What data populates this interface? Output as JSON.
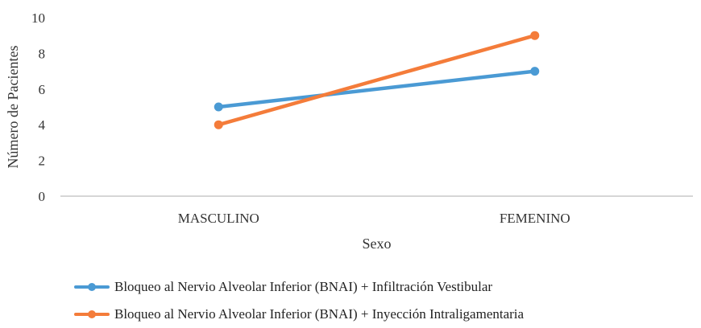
{
  "chart_data": {
    "type": "line",
    "categories": [
      "MASCULINO",
      "FEMENINO"
    ],
    "series": [
      {
        "name": "Bloqueo al Nervio Alveolar Inferior (BNAI) + Infiltración Vestibular",
        "values": [
          5,
          7
        ],
        "color": "#4a9ad4"
      },
      {
        "name": "Bloqueo al Nervio Alveolar Inferior (BNAI) + Inyección Intraligamentaria",
        "values": [
          4,
          9
        ],
        "color": "#f47c3a"
      }
    ],
    "xlabel": "Sexo",
    "ylabel": "Número de Pacientes",
    "ylim": [
      0,
      10
    ],
    "yticks": [
      "0",
      "2",
      "4",
      "6",
      "8",
      "10"
    ],
    "grid": false,
    "legend_position": "bottom"
  }
}
